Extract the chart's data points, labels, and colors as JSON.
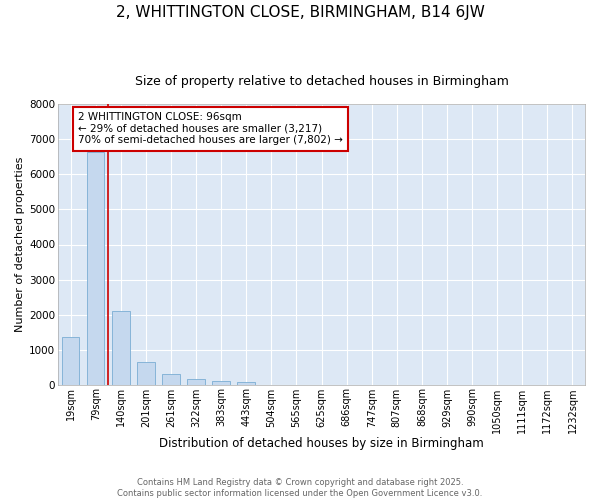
{
  "title": "2, WHITTINGTON CLOSE, BIRMINGHAM, B14 6JW",
  "subtitle": "Size of property relative to detached houses in Birmingham",
  "xlabel": "Distribution of detached houses by size in Birmingham",
  "ylabel": "Number of detached properties",
  "categories": [
    "19sqm",
    "79sqm",
    "140sqm",
    "201sqm",
    "261sqm",
    "322sqm",
    "383sqm",
    "443sqm",
    "504sqm",
    "565sqm",
    "625sqm",
    "686sqm",
    "747sqm",
    "807sqm",
    "868sqm",
    "929sqm",
    "990sqm",
    "1050sqm",
    "1111sqm",
    "1172sqm",
    "1232sqm"
  ],
  "values": [
    1350,
    6650,
    2100,
    650,
    310,
    155,
    100,
    60,
    0,
    0,
    0,
    0,
    0,
    0,
    0,
    0,
    0,
    0,
    0,
    0,
    0
  ],
  "bar_color": "#c5d8ee",
  "bar_edge_color": "#7aadd4",
  "ylim": [
    0,
    8000
  ],
  "yticks": [
    0,
    1000,
    2000,
    3000,
    4000,
    5000,
    6000,
    7000,
    8000
  ],
  "vline_x": 1.5,
  "vline_color": "#cc0000",
  "annotation_text": "2 WHITTINGTON CLOSE: 96sqm\n← 29% of detached houses are smaller (3,217)\n70% of semi-detached houses are larger (7,802) →",
  "annotation_box_color": "#cc0000",
  "bg_color": "#dde8f5",
  "footer_text": "Contains HM Land Registry data © Crown copyright and database right 2025.\nContains public sector information licensed under the Open Government Licence v3.0.",
  "title_fontsize": 11,
  "subtitle_fontsize": 9,
  "xlabel_fontsize": 8.5,
  "ylabel_fontsize": 8,
  "tick_fontsize": 7,
  "annotation_fontsize": 7.5,
  "footer_fontsize": 6
}
